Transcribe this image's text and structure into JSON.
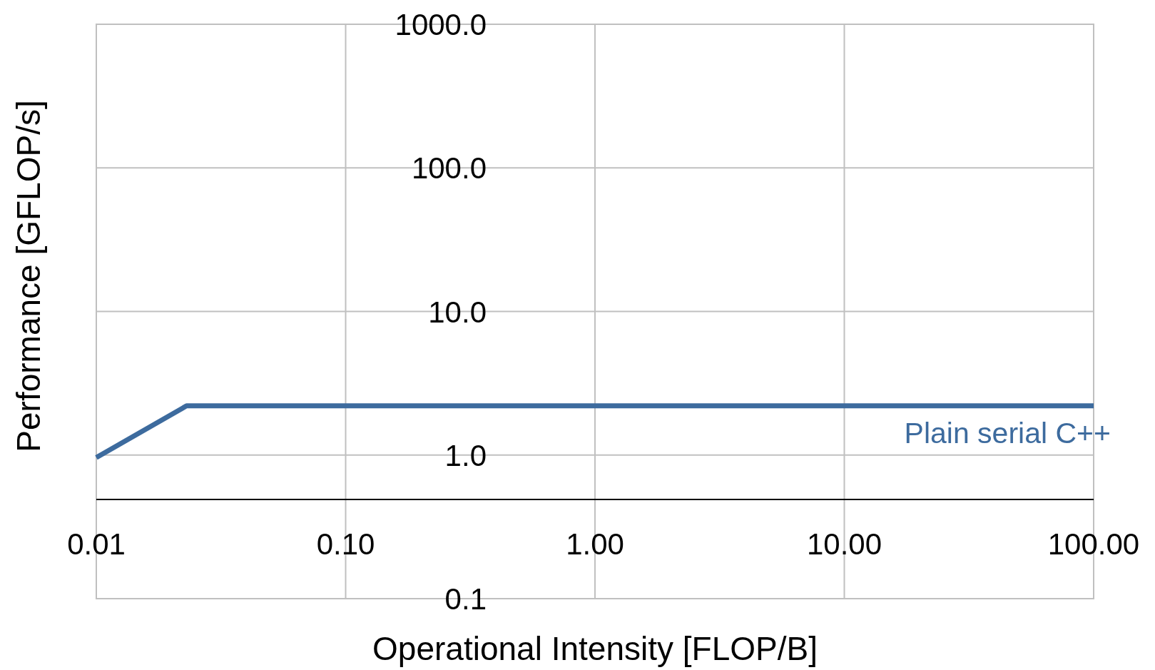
{
  "chart_data": {
    "type": "line",
    "xlabel": "Operational Intensity [FLOP/B]",
    "ylabel": "Performance [GFLOP/s]",
    "log": "xy",
    "grid": true,
    "marker": "none",
    "line_style": "solid",
    "xlim": [
      0.01,
      100
    ],
    "ylim": [
      0.1,
      1000
    ],
    "xticks": [
      0.01,
      {
        "value": 0.1,
        "label": "0.10"
      },
      {
        "value": 1,
        "label": "1.00"
      },
      {
        "value": 10,
        "label": "10.00"
      },
      {
        "value": 100,
        "label": "100.00"
      }
    ],
    "yticks": [
      0.1,
      {
        "value": 1,
        "label": "1.0"
      },
      {
        "value": 10,
        "label": "10.0"
      },
      {
        "value": 100,
        "label": "100.0"
      },
      {
        "value": 1000,
        "label": "1000.0"
      }
    ],
    "series": [
      {
        "name": "Plain serial C++",
        "color": "#3d6b9e",
        "x": [
          0.01,
          0.023,
          100
        ],
        "values": [
          0.96,
          2.2,
          2.2
        ]
      }
    ]
  }
}
